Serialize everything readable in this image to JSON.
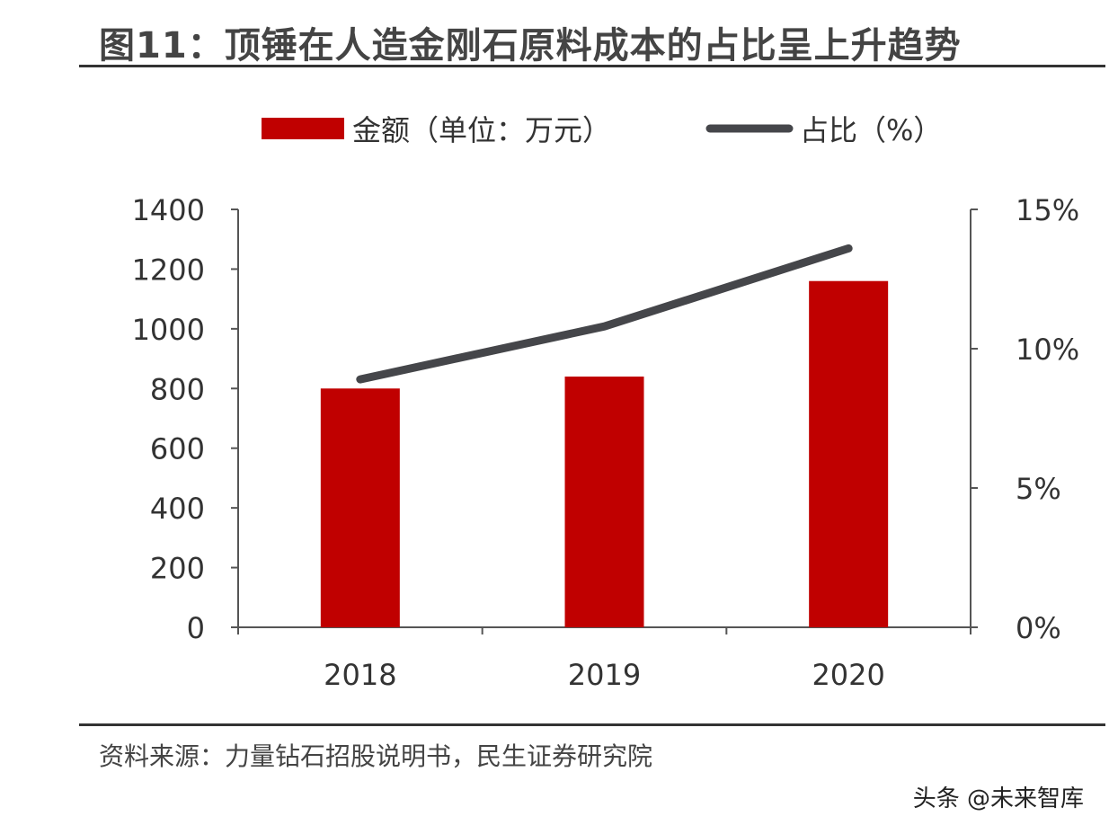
{
  "title": "图11：顶锤在人造金刚石原料成本的占比呈上升趋势",
  "source": "资料来源：力量钻石招股说明书，民生证券研究院",
  "watermark": "头条 @未来智库",
  "chart_data": {
    "type": "bar+line",
    "categories": [
      "2018",
      "2019",
      "2020"
    ],
    "series": [
      {
        "name": "金额（单位：万元）",
        "type": "bar",
        "axis": "left",
        "color": "#c00000",
        "values": [
          800,
          840,
          1160
        ]
      },
      {
        "name": "占比（%）",
        "type": "line",
        "axis": "right",
        "color": "#45464a",
        "values": [
          8.9,
          10.8,
          13.6
        ]
      }
    ],
    "left_axis": {
      "ylim": [
        0,
        1400
      ],
      "ticks": [
        "0",
        "200",
        "400",
        "600",
        "800",
        "1000",
        "1200",
        "1400"
      ]
    },
    "right_axis": {
      "ylim": [
        0,
        15
      ],
      "ticks": [
        "0%",
        "5%",
        "10%",
        "15%"
      ]
    },
    "grid": false,
    "legend_position": "top"
  }
}
